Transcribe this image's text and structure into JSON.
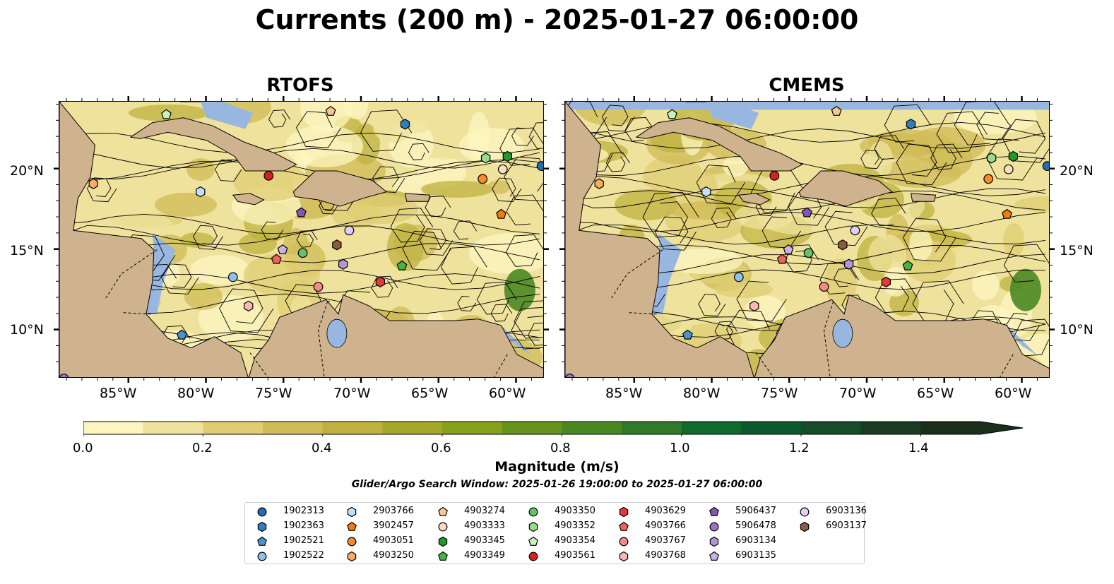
{
  "title": "Currents (200 m) - 2025-01-27 06:00:00",
  "colors": {
    "ocean": "#98b7e0",
    "land": "#cfb28e",
    "figure_bg": "#ffffff"
  },
  "panels": [
    {
      "id": "rtofs",
      "title": "RTOFS"
    },
    {
      "id": "cmems",
      "title": "CMEMS"
    }
  ],
  "map": {
    "lon_range": [
      -89.5,
      -58.2
    ],
    "lat_range": [
      7.0,
      24.2
    ],
    "lon_ticks": [
      "85°W",
      "80°W",
      "75°W",
      "70°W",
      "65°W",
      "60°W"
    ],
    "lat_ticks": [
      "10°N",
      "15°N",
      "20°N"
    ],
    "field": "Current magnitude with streamlines, 200 m depth"
  },
  "colorbar": {
    "label": "Magnitude (m/s)",
    "ticks": [
      "0.0",
      "0.2",
      "0.4",
      "0.6",
      "0.8",
      "1.0",
      "1.2",
      "1.4"
    ],
    "min": 0.0,
    "max": 1.5,
    "extend": "max",
    "colors": [
      "#fcf5c0",
      "#efe29c",
      "#e0cd73",
      "#d0bb57",
      "#bfb13f",
      "#a6a82b",
      "#86a11b",
      "#65931b",
      "#4a8822",
      "#2f7a28",
      "#12692c",
      "#0b5a2b",
      "#164c2a",
      "#1a3a22",
      "#1b2e1a"
    ]
  },
  "search_window": "Glider/Argo Search Window: 2025-01-26 19:00:00 to 2025-01-27 06:00:00",
  "legend": [
    {
      "id": "1902313",
      "marker": "circle",
      "color": "#1f6fb4"
    },
    {
      "id": "1902363",
      "marker": "hexagon",
      "color": "#2c7fc0"
    },
    {
      "id": "1902521",
      "marker": "pentagon",
      "color": "#4a92d0"
    },
    {
      "id": "1902522",
      "marker": "circle",
      "color": "#8fc1ec"
    },
    {
      "id": "2903766",
      "marker": "hexagon",
      "color": "#bfe1f6"
    },
    {
      "id": "3902457",
      "marker": "pentagon",
      "color": "#f07c10"
    },
    {
      "id": "4903051",
      "marker": "circle",
      "color": "#f58a2e"
    },
    {
      "id": "4903250",
      "marker": "hexagon",
      "color": "#f6ad64"
    },
    {
      "id": "4903274",
      "marker": "pentagon",
      "color": "#f7c692"
    },
    {
      "id": "4903333",
      "marker": "circle",
      "color": "#fbdcbd"
    },
    {
      "id": "4903345",
      "marker": "hexagon",
      "color": "#1f9a2a"
    },
    {
      "id": "4903349",
      "marker": "pentagon",
      "color": "#44b444"
    },
    {
      "id": "4903350",
      "marker": "circle",
      "color": "#66c266"
    },
    {
      "id": "4903352",
      "marker": "hexagon",
      "color": "#96dc8a"
    },
    {
      "id": "4903354",
      "marker": "pentagon",
      "color": "#c8f1bd"
    },
    {
      "id": "4903561",
      "marker": "circle",
      "color": "#d62020"
    },
    {
      "id": "4903629",
      "marker": "hexagon",
      "color": "#e2393b"
    },
    {
      "id": "4903766",
      "marker": "pentagon",
      "color": "#ee6161"
    },
    {
      "id": "4903767",
      "marker": "circle",
      "color": "#f28a8a"
    },
    {
      "id": "4903768",
      "marker": "hexagon",
      "color": "#fbb6b6"
    },
    {
      "id": "5906437",
      "marker": "pentagon",
      "color": "#8455b8"
    },
    {
      "id": "5906478",
      "marker": "circle",
      "color": "#9a73c8"
    },
    {
      "id": "6903134",
      "marker": "hexagon",
      "color": "#b096d6"
    },
    {
      "id": "6903135",
      "marker": "pentagon",
      "color": "#c8b2e6"
    },
    {
      "id": "6903136",
      "marker": "circle",
      "color": "#e2cdf5"
    },
    {
      "id": "6903137",
      "marker": "hexagon",
      "color": "#8c5a3c"
    }
  ],
  "float_positions": [
    {
      "id": "1902313",
      "lon": -58.4,
      "lat": 20.2
    },
    {
      "id": "1902363",
      "lon": -67.2,
      "lat": 22.8
    },
    {
      "id": "1902521",
      "lon": -81.6,
      "lat": 9.7
    },
    {
      "id": "1902522",
      "lon": -78.3,
      "lat": 13.3
    },
    {
      "id": "2903766",
      "lon": -80.4,
      "lat": 18.6
    },
    {
      "id": "3902457",
      "lon": -61.0,
      "lat": 17.2
    },
    {
      "id": "4903051",
      "lon": -62.2,
      "lat": 19.4
    },
    {
      "id": "4903250",
      "lon": -87.3,
      "lat": 19.1
    },
    {
      "id": "4903274",
      "lon": -72.0,
      "lat": 23.6
    },
    {
      "id": "4903333",
      "lon": -60.9,
      "lat": 20.0
    },
    {
      "id": "4903345",
      "lon": -60.6,
      "lat": 20.8
    },
    {
      "id": "4903349",
      "lon": -67.4,
      "lat": 14.0
    },
    {
      "id": "4903350",
      "lon": -73.8,
      "lat": 14.8
    },
    {
      "id": "4903352",
      "lon": -62.0,
      "lat": 20.7
    },
    {
      "id": "4903354",
      "lon": -82.6,
      "lat": 23.4
    },
    {
      "id": "4903561",
      "lon": -76.0,
      "lat": 19.6
    },
    {
      "id": "4903629",
      "lon": -68.8,
      "lat": 13.0
    },
    {
      "id": "4903766",
      "lon": -75.5,
      "lat": 14.4
    },
    {
      "id": "4903767",
      "lon": -72.8,
      "lat": 12.7
    },
    {
      "id": "4903768",
      "lon": -77.3,
      "lat": 11.5
    },
    {
      "id": "5906437",
      "lon": -73.9,
      "lat": 17.3
    },
    {
      "id": "5906478",
      "lon": -89.2,
      "lat": 7.0
    },
    {
      "id": "6903134",
      "lon": -71.2,
      "lat": 14.1
    },
    {
      "id": "6903135",
      "lon": -75.1,
      "lat": 15.0
    },
    {
      "id": "6903136",
      "lon": -70.8,
      "lat": 16.2
    },
    {
      "id": "6903137",
      "lon": -71.6,
      "lat": 15.3
    }
  ]
}
